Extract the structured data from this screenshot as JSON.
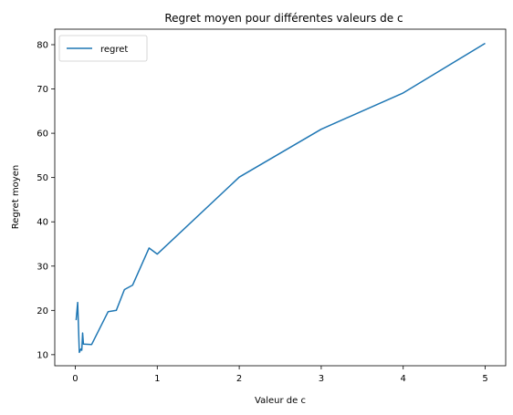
{
  "chart_data": {
    "type": "line",
    "title": "Regret moyen pour différentes valeurs de c",
    "xlabel": "Valeur de c",
    "ylabel": "Regret moyen",
    "xlim": [
      -0.25,
      5.25
    ],
    "ylim": [
      7.5,
      83.5
    ],
    "xticks": [
      0,
      1,
      2,
      3,
      4,
      5
    ],
    "yticks": [
      10,
      20,
      30,
      40,
      50,
      60,
      70,
      80
    ],
    "grid": false,
    "legend_position": "top-left",
    "line_color": "#1f77b4",
    "series": [
      {
        "name": "regret",
        "x": [
          0.01,
          0.03,
          0.05,
          0.07,
          0.08,
          0.09,
          0.1,
          0.2,
          0.4,
          0.5,
          0.6,
          0.7,
          0.9,
          1.0,
          2.0,
          3.0,
          4.0,
          5.0
        ],
        "y": [
          17.8,
          21.8,
          10.5,
          11.3,
          11.0,
          14.9,
          12.4,
          12.3,
          19.7,
          20.0,
          24.7,
          25.7,
          34.1,
          32.7,
          50.1,
          60.9,
          69.1,
          80.3
        ]
      }
    ]
  }
}
